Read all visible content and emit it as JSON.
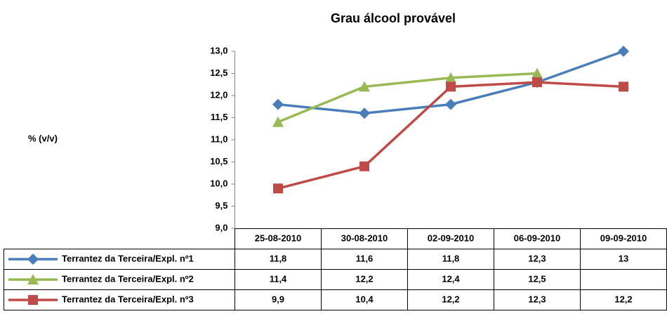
{
  "chart_data": {
    "type": "line",
    "title": "Grau álcool provável",
    "y_label": "% (v/v)",
    "categories": [
      "25-08-2010",
      "30-08-2010",
      "02-09-2010",
      "06-09-2010",
      "09-09-2010"
    ],
    "series": [
      {
        "name": "Terrantez da Terceira/Expl. nº1",
        "color": "#4a7ebb",
        "marker": "diamond",
        "values": [
          11.8,
          11.6,
          11.8,
          12.3,
          13
        ],
        "value_labels": [
          "11,8",
          "11,6",
          "11,8",
          "12,3",
          "13"
        ]
      },
      {
        "name": "Terrantez da Terceira/Expl. nº2",
        "color": "#98b954",
        "marker": "triangle",
        "values": [
          11.4,
          12.2,
          12.4,
          12.5,
          null
        ],
        "value_labels": [
          "11,4",
          "12,2",
          "12,4",
          "12,5",
          null
        ]
      },
      {
        "name": "Terrantez da Terceira/Expl. nº3",
        "color": "#be4b48",
        "marker": "square",
        "values": [
          9.9,
          10.4,
          12.2,
          12.3,
          12.2
        ],
        "value_labels": [
          "9,9",
          "10,4",
          "12,2",
          "12,3",
          "12,2"
        ]
      }
    ],
    "ylim": [
      9,
      13
    ],
    "yticks": [
      {
        "value": 9,
        "label": "9,0"
      },
      {
        "value": 9.5,
        "label": "9,5"
      },
      {
        "value": 10,
        "label": "10,0"
      },
      {
        "value": 10.5,
        "label": "10,5"
      },
      {
        "value": 11,
        "label": "11,0"
      },
      {
        "value": 11.5,
        "label": "11,5"
      },
      {
        "value": 12,
        "label": "12,0"
      },
      {
        "value": 12.5,
        "label": "12,5"
      },
      {
        "value": 13,
        "label": "13,0"
      }
    ],
    "grid": false
  }
}
